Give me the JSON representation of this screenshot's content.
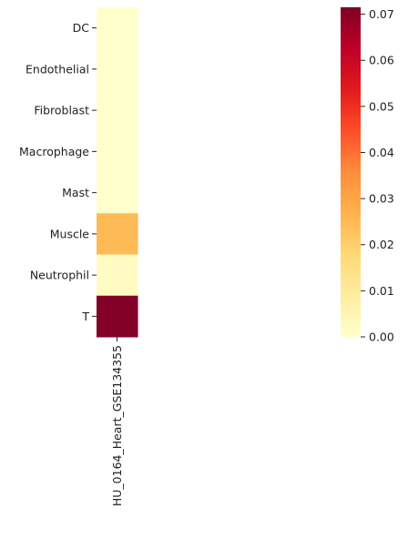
{
  "chart_data": {
    "type": "heatmap",
    "title": "",
    "xlabel": "",
    "ylabel": "",
    "columns": [
      "HU_0164_Heart_GSE134355"
    ],
    "rows": [
      "DC",
      "Endothelial",
      "Fibroblast",
      "Macrophage",
      "Mast",
      "Muscle",
      "Neutrophil",
      "T"
    ],
    "values": [
      [
        0.0
      ],
      [
        0.0
      ],
      [
        0.0
      ],
      [
        0.0
      ],
      [
        0.0
      ],
      [
        0.025
      ],
      [
        0.002
      ],
      [
        0.071
      ]
    ],
    "colorbar": {
      "colormap": "YlOrRd",
      "min": 0.0,
      "max": 0.0715,
      "ticks": [
        0.0,
        0.01,
        0.02,
        0.03,
        0.04,
        0.05,
        0.06,
        0.07
      ],
      "tick_labels": [
        "0.00",
        "0.01",
        "0.02",
        "0.03",
        "0.04",
        "0.05",
        "0.06",
        "0.07"
      ],
      "stops": [
        "#ffffcc",
        "#ffeda0",
        "#fed976",
        "#feb24c",
        "#fd8d3c",
        "#fc4e2a",
        "#e31a1c",
        "#bd0026",
        "#800026"
      ]
    }
  }
}
